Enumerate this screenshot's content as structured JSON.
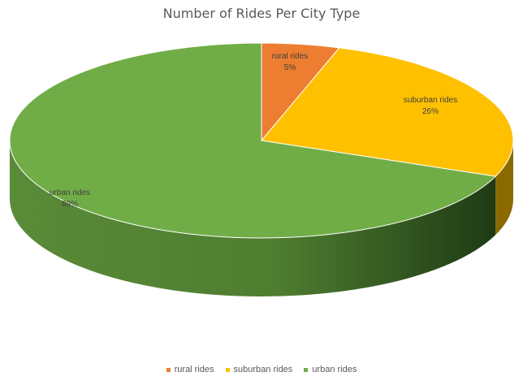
{
  "chart_data": {
    "type": "pie",
    "title": "Number of Rides Per City Type",
    "categories": [
      "rural rides",
      "suburban rides",
      "urban rides"
    ],
    "values": [
      5,
      26,
      69
    ],
    "labels": [
      "5%",
      "26%",
      "69%"
    ],
    "colors": [
      "#ED7D31",
      "#FFC000",
      "#70AD47"
    ],
    "side_colors": [
      "#9A4F1E",
      "#8A6A00",
      "#2F4E1F"
    ],
    "style": "3d",
    "legend": "bottom"
  }
}
